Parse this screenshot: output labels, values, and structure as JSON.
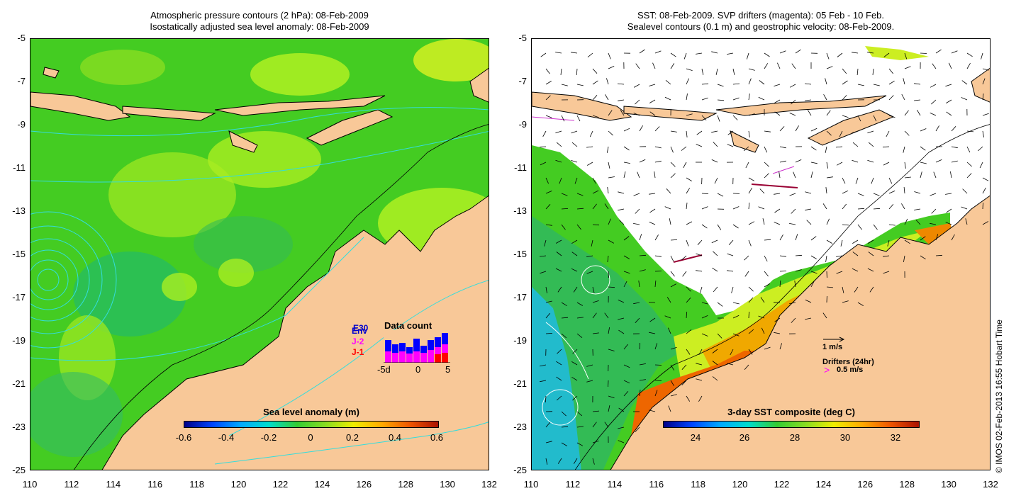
{
  "left_panel": {
    "title_line1": "Atmospheric pressure contours (2 hPa): 08-Feb-2009",
    "title_line2": "Isostatically adjusted sea level anomaly: 08-Feb-2009",
    "colorbar_title": "Sea level anomaly (m)",
    "colorbar_ticks": [
      "-0.6",
      "-0.4",
      "-0.2",
      "0",
      "0.2",
      "0.4",
      "0.6"
    ],
    "legend": {
      "title": "Data count",
      "labels": [
        "E30",
        "Env",
        "J-2",
        "J-1"
      ],
      "label_colors": [
        "#0000cc",
        "#0000cc",
        "#ff00ff",
        "#ff0000"
      ],
      "xticks": [
        "-5d",
        "0",
        "5"
      ]
    }
  },
  "right_panel": {
    "title_line1": "SST: 08-Feb-2009. SVP drifters (magenta): 05 Feb - 10 Feb.",
    "title_line2": "Sealevel contours (0.1 m) and geostrophic velocity: 08-Feb-2009.",
    "colorbar_title": "3-day SST composite (deg C)",
    "colorbar_ticks": [
      "24",
      "26",
      "28",
      "30",
      "32"
    ],
    "velocity_scale": "1 m/s",
    "drifter_title": "Drifters (24hr)",
    "drifter_scale": "0.5 m/s"
  },
  "axes": {
    "y_ticks": [
      "-5",
      "-7",
      "-9",
      "-11",
      "-13",
      "-15",
      "-17",
      "-19",
      "-21",
      "-23",
      "-25"
    ],
    "x_ticks": [
      "110",
      "112",
      "114",
      "116",
      "118",
      "120",
      "122",
      "124",
      "126",
      "128",
      "130",
      "132"
    ]
  },
  "copyright": "© IMOS 02-Feb-2013 16:55 Hobart Time",
  "colors": {
    "land": "#f8c898",
    "sea_green": "#44cc22",
    "sea_yellow": "#aaee22",
    "sea_cyan": "#22bb88",
    "sst_orange": "#f08800",
    "sst_red": "#cc2200"
  }
}
